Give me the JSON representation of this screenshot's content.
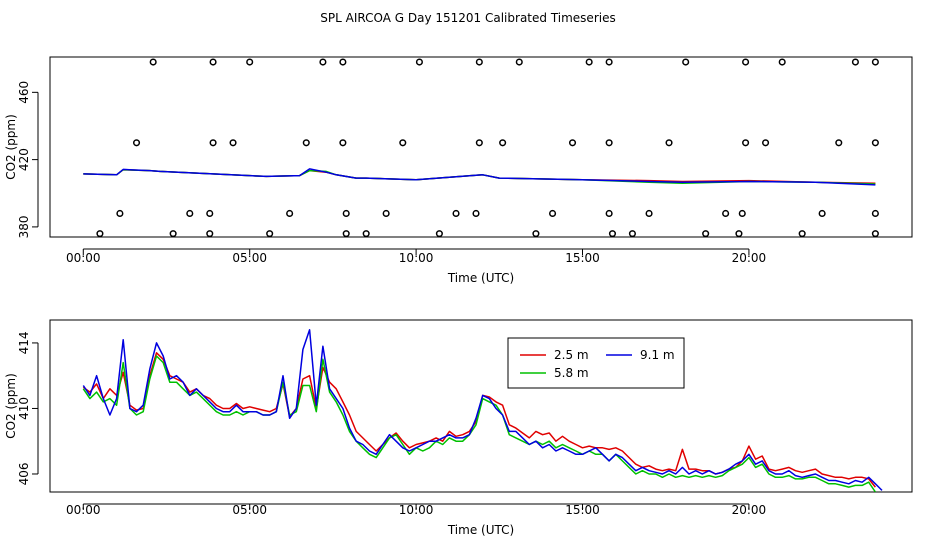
{
  "title": "SPL AIRCOA G  Day 151201  Calibrated Timeseries",
  "colors": {
    "s1": "#e00000",
    "s2": "#00c000",
    "s3": "#0000e0",
    "axis": "#000000"
  },
  "chart_data": [
    {
      "type": "line",
      "xlabel": "Time (UTC)",
      "ylabel": "CO2 (ppm)",
      "xlim": [
        -1.0,
        24.9
      ],
      "ylim": [
        374,
        481
      ],
      "xticks": [
        0,
        5,
        10,
        15,
        20
      ],
      "xtick_labels": [
        "00:00",
        "05:00",
        "10:00",
        "15:00",
        "20:00"
      ],
      "yticks": [
        380,
        420,
        460
      ],
      "ytick_labels": [
        "380",
        "420",
        "460"
      ],
      "series": [
        {
          "name": "2.5 m",
          "color": "#e00000",
          "x": [
            0.0,
            1.0,
            1.2,
            2.0,
            2.3,
            5.5,
            6.5,
            6.8,
            7.3,
            7.6,
            8.2,
            8.5,
            10.0,
            12.0,
            12.5,
            15.0,
            17.0,
            18.0,
            20.0,
            22.0,
            23.8
          ],
          "y": [
            411.5,
            411,
            414,
            413.5,
            413,
            410,
            410.5,
            413.5,
            412.5,
            411,
            409,
            409,
            408,
            411,
            409,
            408,
            407.5,
            407,
            407.5,
            406.5,
            406
          ]
        },
        {
          "name": "5.8 m",
          "color": "#00c000",
          "x": [
            0.0,
            1.0,
            1.2,
            2.0,
            2.3,
            5.5,
            6.5,
            6.8,
            7.3,
            7.6,
            8.2,
            8.5,
            10.0,
            12.0,
            12.5,
            15.0,
            17.0,
            18.0,
            20.0,
            22.0,
            23.8
          ],
          "y": [
            411.5,
            411,
            414,
            413.5,
            413,
            410,
            410.5,
            413.5,
            413,
            411,
            409,
            409,
            408,
            411,
            409,
            408,
            406.5,
            406,
            407,
            406.5,
            405.5
          ]
        },
        {
          "name": "9.1 m",
          "color": "#0000e0",
          "x": [
            0.0,
            1.0,
            1.2,
            2.0,
            2.3,
            5.5,
            6.5,
            6.8,
            7.3,
            7.6,
            8.2,
            8.5,
            10.0,
            12.0,
            12.5,
            15.0,
            17.0,
            18.0,
            20.0,
            22.0,
            23.8
          ],
          "y": [
            411.5,
            411,
            414.2,
            413.5,
            413,
            410,
            410.5,
            414.5,
            412.5,
            411,
            409,
            409,
            408,
            411,
            409,
            408,
            407,
            406.5,
            407,
            406.5,
            405
          ]
        }
      ],
      "markers": {
        "symbol": "open-circle",
        "x": [
          0.5,
          2.7,
          3.8,
          5.6,
          7.9,
          8.5,
          10.7,
          13.6,
          15.9,
          16.5,
          18.7,
          19.7,
          21.6,
          23.8,
          1.1,
          3.2,
          3.8,
          6.2,
          7.9,
          9.1,
          11.2,
          11.8,
          14.1,
          15.8,
          17.0,
          19.3,
          19.8,
          22.2,
          23.8,
          1.6,
          3.9,
          4.5,
          6.7,
          7.8,
          9.6,
          11.9,
          12.6,
          14.7,
          15.8,
          17.6,
          19.9,
          20.5,
          22.7,
          23.8,
          2.1,
          3.9,
          5.0,
          7.2,
          7.8,
          10.1,
          11.9,
          13.1,
          15.2,
          15.8,
          18.1,
          19.9,
          21.0,
          23.2,
          23.8
        ],
        "y": [
          376,
          376,
          376,
          376,
          376,
          376,
          376,
          376,
          376,
          376,
          376,
          376,
          376,
          376,
          388,
          388,
          388,
          388,
          388,
          388,
          388,
          388,
          388,
          388,
          388,
          388,
          388,
          388,
          388,
          430,
          430,
          430,
          430,
          430,
          430,
          430,
          430,
          430,
          430,
          430,
          430,
          430,
          430,
          430,
          478,
          478,
          478,
          478,
          478,
          478,
          478,
          478,
          478,
          478,
          478,
          478,
          478,
          478,
          478
        ]
      },
      "grid": false
    },
    {
      "type": "line",
      "xlabel": "Time (UTC)",
      "ylabel": "CO2 (ppm)",
      "xlim": [
        -1.0,
        24.9
      ],
      "ylim": [
        404.9,
        415.4
      ],
      "xticks": [
        0,
        5,
        10,
        15,
        20
      ],
      "xtick_labels": [
        "00:00",
        "05:00",
        "10:00",
        "15:00",
        "20:00"
      ],
      "yticks": [
        406,
        410,
        414
      ],
      "ytick_labels": [
        "406",
        "410",
        "414"
      ],
      "legend": {
        "placement": "top-center",
        "entries": [
          "2.5 m",
          "5.8 m",
          "9.1 m"
        ]
      },
      "series": [
        {
          "name": "2.5 m",
          "color": "#e00000",
          "x": [
            0,
            0.2,
            0.4,
            0.6,
            0.8,
            1.0,
            1.2,
            1.4,
            1.6,
            1.8,
            2.0,
            2.2,
            2.4,
            2.6,
            2.8,
            3.0,
            3.2,
            3.4,
            3.6,
            3.8,
            4.0,
            4.2,
            4.4,
            4.6,
            4.8,
            5.0,
            5.2,
            5.4,
            5.6,
            5.8,
            6.0,
            6.2,
            6.4,
            6.6,
            6.8,
            7.0,
            7.2,
            7.4,
            7.6,
            7.8,
            8.0,
            8.2,
            8.4,
            8.6,
            8.8,
            9.0,
            9.2,
            9.4,
            9.6,
            9.8,
            10.0,
            10.2,
            10.4,
            10.6,
            10.8,
            11.0,
            11.2,
            11.4,
            11.6,
            11.8,
            12.0,
            12.2,
            12.4,
            12.6,
            12.8,
            13.0,
            13.2,
            13.4,
            13.6,
            13.8,
            14.0,
            14.2,
            14.4,
            14.6,
            14.8,
            15.0,
            15.2,
            15.4,
            15.6,
            15.8,
            16.0,
            16.2,
            16.4,
            16.6,
            16.8,
            17.0,
            17.2,
            17.4,
            17.6,
            17.8,
            18.0,
            18.2,
            18.4,
            18.6,
            18.8,
            19.0,
            19.2,
            19.4,
            19.6,
            19.8,
            20.0,
            20.2,
            20.4,
            20.6,
            20.8,
            21.0,
            21.2,
            21.4,
            21.6,
            21.8,
            22.0,
            22.2,
            22.4,
            22.6,
            22.8,
            23.0,
            23.2,
            23.4,
            23.6,
            23.8
          ],
          "y": [
            411.3,
            411.0,
            411.5,
            410.6,
            411.2,
            410.8,
            412.2,
            410.2,
            409.9,
            410.0,
            412.0,
            413.4,
            413.0,
            412.0,
            411.8,
            411.6,
            411.0,
            411.2,
            410.8,
            410.6,
            410.2,
            410.0,
            410.0,
            410.3,
            410.0,
            410.1,
            410.0,
            409.9,
            409.8,
            410.0,
            411.5,
            409.5,
            410.0,
            411.8,
            412.0,
            410.0,
            412.5,
            411.6,
            411.2,
            410.4,
            409.6,
            408.6,
            408.2,
            407.8,
            407.4,
            407.8,
            408.2,
            408.5,
            408.0,
            407.6,
            407.8,
            407.9,
            408.0,
            408.2,
            408.0,
            408.6,
            408.3,
            408.4,
            408.6,
            409.2,
            410.8,
            410.7,
            410.4,
            410.2,
            409.0,
            408.8,
            408.5,
            408.2,
            408.6,
            408.4,
            408.5,
            408.0,
            408.3,
            408.0,
            407.8,
            407.6,
            407.7,
            407.6,
            407.6,
            407.5,
            407.6,
            407.4,
            407.0,
            406.6,
            406.4,
            406.5,
            406.3,
            406.2,
            406.3,
            406.2,
            407.5,
            406.3,
            406.3,
            406.2,
            406.2,
            406.0,
            406.1,
            406.3,
            406.4,
            406.8,
            407.7,
            406.9,
            407.1,
            406.3,
            406.2,
            406.3,
            406.4,
            406.2,
            406.1,
            406.2,
            406.3,
            406.0,
            405.9,
            405.8,
            405.8,
            405.7,
            405.8,
            405.8,
            405.7,
            405.2
          ]
        },
        {
          "name": "5.8 m",
          "color": "#00c000",
          "x": [
            0,
            0.2,
            0.4,
            0.6,
            0.8,
            1.0,
            1.2,
            1.4,
            1.6,
            1.8,
            2.0,
            2.2,
            2.4,
            2.6,
            2.8,
            3.0,
            3.2,
            3.4,
            3.6,
            3.8,
            4.0,
            4.2,
            4.4,
            4.6,
            4.8,
            5.0,
            5.2,
            5.4,
            5.6,
            5.8,
            6.0,
            6.2,
            6.4,
            6.6,
            6.8,
            7.0,
            7.2,
            7.4,
            7.6,
            7.8,
            8.0,
            8.2,
            8.4,
            8.6,
            8.8,
            9.0,
            9.2,
            9.4,
            9.6,
            9.8,
            10.0,
            10.2,
            10.4,
            10.6,
            10.8,
            11.0,
            11.2,
            11.4,
            11.6,
            11.8,
            12.0,
            12.2,
            12.4,
            12.6,
            12.8,
            13.0,
            13.2,
            13.4,
            13.6,
            13.8,
            14.0,
            14.2,
            14.4,
            14.6,
            14.8,
            15.0,
            15.2,
            15.4,
            15.6,
            15.8,
            16.0,
            16.2,
            16.4,
            16.6,
            16.8,
            17.0,
            17.2,
            17.4,
            17.6,
            17.8,
            18.0,
            18.2,
            18.4,
            18.6,
            18.8,
            19.0,
            19.2,
            19.4,
            19.6,
            19.8,
            20.0,
            20.2,
            20.4,
            20.6,
            20.8,
            21.0,
            21.2,
            21.4,
            21.6,
            21.8,
            22.0,
            22.2,
            22.4,
            22.6,
            22.8,
            23.0,
            23.2,
            23.4,
            23.6,
            23.8
          ],
          "y": [
            411.2,
            410.6,
            411.0,
            410.4,
            410.6,
            410.2,
            412.8,
            410.0,
            409.6,
            409.8,
            411.8,
            413.2,
            412.8,
            411.6,
            411.6,
            411.2,
            410.8,
            411.0,
            410.6,
            410.2,
            409.8,
            409.6,
            409.6,
            409.8,
            409.6,
            409.8,
            409.8,
            409.6,
            409.6,
            409.8,
            411.6,
            409.6,
            409.8,
            411.4,
            411.4,
            409.8,
            413.0,
            411.0,
            410.4,
            409.6,
            408.6,
            408.0,
            407.6,
            407.2,
            407.0,
            407.6,
            408.2,
            408.4,
            407.8,
            407.2,
            407.6,
            407.4,
            407.6,
            408.0,
            407.8,
            408.2,
            408.0,
            408.0,
            408.4,
            409.0,
            410.6,
            410.4,
            410.2,
            409.6,
            408.4,
            408.2,
            408.0,
            407.8,
            408.0,
            407.8,
            408.0,
            407.6,
            407.8,
            407.6,
            407.4,
            407.2,
            407.4,
            407.2,
            407.2,
            406.8,
            407.2,
            406.8,
            406.4,
            406.0,
            406.2,
            406.0,
            406.0,
            405.8,
            406.0,
            405.8,
            405.9,
            405.8,
            405.9,
            405.8,
            405.9,
            405.8,
            405.9,
            406.2,
            406.4,
            406.6,
            407.0,
            406.4,
            406.6,
            406.0,
            405.8,
            405.8,
            405.9,
            405.7,
            405.7,
            405.8,
            405.8,
            405.6,
            405.4,
            405.4,
            405.3,
            405.2,
            405.3,
            405.3,
            405.5,
            404.9
          ]
        },
        {
          "name": "9.1 m",
          "color": "#0000e0",
          "x": [
            0,
            0.2,
            0.4,
            0.6,
            0.8,
            1.0,
            1.2,
            1.4,
            1.6,
            1.8,
            2.0,
            2.2,
            2.4,
            2.6,
            2.8,
            3.0,
            3.2,
            3.4,
            3.6,
            3.8,
            4.0,
            4.2,
            4.4,
            4.6,
            4.8,
            5.0,
            5.2,
            5.4,
            5.6,
            5.8,
            6.0,
            6.2,
            6.4,
            6.6,
            6.8,
            7.0,
            7.2,
            7.4,
            7.6,
            7.8,
            8.0,
            8.2,
            8.4,
            8.6,
            8.8,
            9.0,
            9.2,
            9.4,
            9.6,
            9.8,
            10.0,
            10.2,
            10.4,
            10.6,
            10.8,
            11.0,
            11.2,
            11.4,
            11.6,
            11.8,
            12.0,
            12.2,
            12.4,
            12.6,
            12.8,
            13.0,
            13.2,
            13.4,
            13.6,
            13.8,
            14.0,
            14.2,
            14.4,
            14.6,
            14.8,
            15.0,
            15.2,
            15.4,
            15.6,
            15.8,
            16.0,
            16.2,
            16.4,
            16.6,
            16.8,
            17.0,
            17.2,
            17.4,
            17.6,
            17.8,
            18.0,
            18.2,
            18.4,
            18.6,
            18.8,
            19.0,
            19.2,
            19.4,
            19.6,
            19.8,
            20.0,
            20.2,
            20.4,
            20.6,
            20.8,
            21.0,
            21.2,
            21.4,
            21.6,
            21.8,
            22.0,
            22.2,
            22.4,
            22.6,
            22.8,
            23.0,
            23.2,
            23.4,
            23.6,
            23.8,
            24.0
          ],
          "y": [
            411.4,
            410.8,
            412.0,
            410.6,
            409.6,
            410.6,
            414.2,
            410.0,
            409.8,
            410.2,
            412.4,
            414.0,
            413.2,
            411.8,
            412.0,
            411.6,
            410.8,
            411.2,
            410.8,
            410.4,
            410.0,
            409.8,
            409.8,
            410.2,
            409.8,
            409.8,
            409.8,
            409.6,
            409.6,
            409.8,
            412.0,
            409.4,
            410.0,
            413.6,
            414.8,
            410.2,
            413.8,
            411.2,
            410.6,
            410.0,
            408.8,
            408.0,
            407.8,
            407.4,
            407.2,
            407.8,
            408.4,
            408.0,
            407.6,
            407.4,
            407.6,
            407.8,
            408.0,
            408.0,
            408.2,
            408.4,
            408.2,
            408.2,
            408.4,
            409.4,
            410.8,
            410.6,
            410.0,
            409.6,
            408.6,
            408.6,
            408.2,
            407.8,
            408.0,
            407.6,
            407.8,
            407.4,
            407.6,
            407.4,
            407.2,
            407.2,
            407.4,
            407.6,
            407.2,
            406.8,
            407.2,
            407.0,
            406.6,
            406.2,
            406.4,
            406.2,
            406.1,
            406.0,
            406.2,
            406.0,
            406.4,
            406.0,
            406.2,
            406.0,
            406.2,
            406.0,
            406.1,
            406.3,
            406.6,
            406.8,
            407.2,
            406.6,
            406.8,
            406.2,
            406.0,
            406.0,
            406.2,
            405.9,
            405.8,
            405.9,
            406.0,
            405.8,
            405.6,
            405.6,
            405.5,
            405.4,
            405.6,
            405.5,
            405.8,
            405.4,
            405.0
          ]
        }
      ],
      "grid": false
    }
  ]
}
